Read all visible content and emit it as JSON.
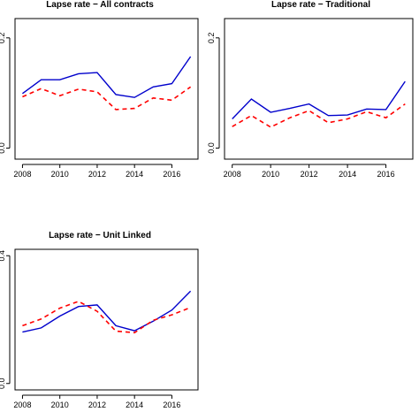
{
  "chart_data": [
    {
      "type": "line",
      "title": "Lapse rate − All contracts",
      "xlabel": "",
      "ylabel": "",
      "xlim": [
        2007.6,
        2017.4
      ],
      "ylim": [
        -0.02,
        0.235
      ],
      "x_ticks": [
        2008,
        2010,
        2012,
        2014,
        2016
      ],
      "y_ticks": [
        0.0,
        0.2
      ],
      "y_tick_labels": [
        "0.0",
        "0.2"
      ],
      "x": [
        2008,
        2009,
        2010,
        2011,
        2012,
        2013,
        2014,
        2015,
        2016,
        2017
      ],
      "series": [
        {
          "style": "solid",
          "color": "#0000cc",
          "values": [
            0.099,
            0.124,
            0.124,
            0.135,
            0.137,
            0.097,
            0.092,
            0.111,
            0.117,
            0.166
          ]
        },
        {
          "style": "dashed",
          "color": "#ff0000",
          "values": [
            0.093,
            0.108,
            0.095,
            0.107,
            0.102,
            0.07,
            0.072,
            0.091,
            0.087,
            0.111
          ]
        }
      ]
    },
    {
      "type": "line",
      "title": "Lapse rate − Traditional",
      "xlabel": "",
      "ylabel": "",
      "xlim": [
        2007.6,
        2017.4
      ],
      "ylim": [
        -0.02,
        0.235
      ],
      "x_ticks": [
        2008,
        2010,
        2012,
        2014,
        2016
      ],
      "y_ticks": [
        0.0,
        0.2
      ],
      "y_tick_labels": [
        "0.0",
        "0.2"
      ],
      "x": [
        2008,
        2009,
        2010,
        2011,
        2012,
        2013,
        2014,
        2015,
        2016,
        2017
      ],
      "series": [
        {
          "style": "solid",
          "color": "#0000cc",
          "values": [
            0.053,
            0.089,
            0.065,
            0.072,
            0.08,
            0.059,
            0.06,
            0.071,
            0.07,
            0.121
          ]
        },
        {
          "style": "dashed",
          "color": "#ff0000",
          "values": [
            0.039,
            0.059,
            0.038,
            0.055,
            0.068,
            0.046,
            0.053,
            0.066,
            0.055,
            0.08
          ]
        }
      ]
    },
    {
      "type": "line",
      "title": "Lapse rate − Unit Linked",
      "xlabel": "",
      "ylabel": "",
      "xlim": [
        2007.6,
        2017.4
      ],
      "ylim": [
        -0.02,
        0.42
      ],
      "x_ticks": [
        2008,
        2010,
        2012,
        2014,
        2016
      ],
      "y_ticks": [
        0.0,
        0.4
      ],
      "y_tick_labels": [
        "0.0",
        "0.4"
      ],
      "x": [
        2008,
        2009,
        2010,
        2011,
        2012,
        2013,
        2014,
        2015,
        2016,
        2017
      ],
      "series": [
        {
          "style": "solid",
          "color": "#0000cc",
          "values": [
            0.161,
            0.174,
            0.211,
            0.241,
            0.246,
            0.181,
            0.165,
            0.195,
            0.23,
            0.289
          ]
        },
        {
          "style": "dashed",
          "color": "#ff0000",
          "values": [
            0.181,
            0.202,
            0.236,
            0.257,
            0.226,
            0.164,
            0.159,
            0.198,
            0.215,
            0.238
          ]
        }
      ]
    }
  ]
}
